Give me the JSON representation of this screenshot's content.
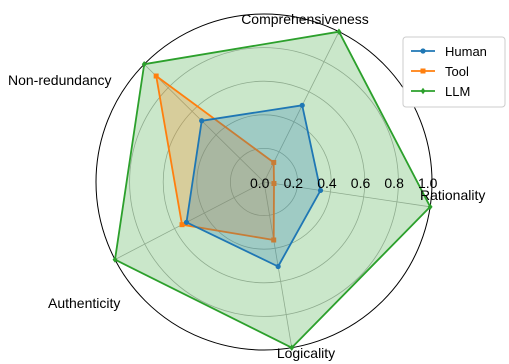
{
  "chart_data": {
    "type": "radar",
    "axes": [
      "Rationality",
      "Comprehensiveness",
      "Non-redundancy",
      "Authenticity",
      "Logicality"
    ],
    "rlim": [
      0,
      1.0
    ],
    "ticks": [
      "0.0",
      "0.2",
      "0.4",
      "0.6",
      "0.8",
      "1.0"
    ],
    "tick_values": [
      0.0,
      0.2,
      0.4,
      0.6,
      0.8,
      1.0
    ],
    "grid": true,
    "legend_position": "top-right",
    "series": [
      {
        "name": "Human",
        "color": "#1f77b4",
        "marker": "circle",
        "values": [
          0.34,
          0.51,
          0.52,
          0.52,
          0.51
        ]
      },
      {
        "name": "Tool",
        "color": "#ff7f0e",
        "marker": "square",
        "values": [
          0.06,
          0.13,
          0.9,
          0.55,
          0.35
        ]
      },
      {
        "name": "LLM",
        "color": "#2ca02c",
        "marker": "diamond",
        "values": [
          1.0,
          1.0,
          1.0,
          1.0,
          1.0
        ]
      }
    ]
  }
}
